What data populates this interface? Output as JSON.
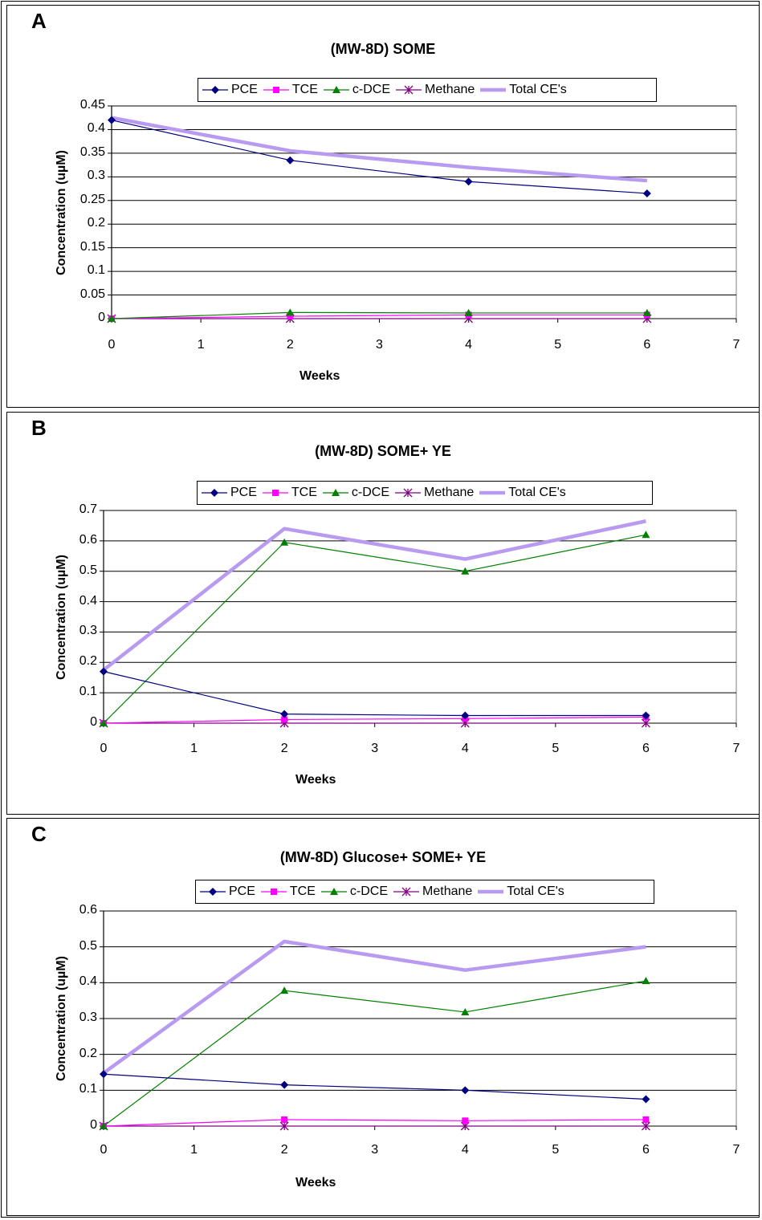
{
  "chart_data": [
    {
      "panel": "A",
      "type": "line",
      "title": "(MW-8D) SOME",
      "xlabel": "Weeks",
      "ylabel": "Concentration (uµM)",
      "xlim": [
        0,
        7
      ],
      "ylim": [
        0,
        0.45
      ],
      "x_ticks": [
        "0",
        "1",
        "2",
        "3",
        "4",
        "5",
        "6",
        "7"
      ],
      "y_ticks": [
        "0",
        "0.05",
        "0.1",
        "0.15",
        "0.2",
        "0.25",
        "0.3",
        "0.35",
        "0.4",
        "0.45"
      ],
      "grid": "horizontal",
      "legend_position": "top",
      "x": [
        0,
        2,
        4,
        6
      ],
      "series": [
        {
          "name": "PCE",
          "values": [
            0.42,
            0.335,
            0.29,
            0.265
          ],
          "color": "#000080",
          "marker": "diamond"
        },
        {
          "name": "TCE",
          "values": [
            0.0,
            0.005,
            0.008,
            0.008
          ],
          "color": "#FF00FF",
          "marker": "square"
        },
        {
          "name": "c-DCE",
          "values": [
            0.0,
            0.013,
            0.012,
            0.012
          ],
          "color": "#008000",
          "marker": "triangle"
        },
        {
          "name": "Methane",
          "values": [
            0.0,
            0.0,
            0.0,
            0.0
          ],
          "color": "#800080",
          "marker": "asterisk"
        },
        {
          "name": "Total CE's",
          "values": [
            0.425,
            0.355,
            0.32,
            0.292
          ],
          "color": "#B89AF0",
          "marker": "none"
        }
      ]
    },
    {
      "panel": "B",
      "type": "line",
      "title": "(MW-8D) SOME+ YE",
      "xlabel": "Weeks",
      "ylabel": "Concentration (uµM)",
      "xlim": [
        0,
        7
      ],
      "ylim": [
        0,
        0.7
      ],
      "x_ticks": [
        "0",
        "1",
        "2",
        "3",
        "4",
        "5",
        "6",
        "7"
      ],
      "y_ticks": [
        "0",
        "0.1",
        "0.2",
        "0.3",
        "0.4",
        "0.5",
        "0.6",
        "0.7"
      ],
      "grid": "horizontal",
      "legend_position": "top",
      "x": [
        0,
        2,
        4,
        6
      ],
      "series": [
        {
          "name": "PCE",
          "values": [
            0.17,
            0.03,
            0.025,
            0.025
          ],
          "color": "#000080",
          "marker": "diamond"
        },
        {
          "name": "TCE",
          "values": [
            0.0,
            0.012,
            0.015,
            0.02
          ],
          "color": "#FF00FF",
          "marker": "square"
        },
        {
          "name": "c-DCE",
          "values": [
            0.0,
            0.595,
            0.5,
            0.62
          ],
          "color": "#008000",
          "marker": "triangle"
        },
        {
          "name": "Methane",
          "values": [
            0.0,
            0.0,
            0.0,
            0.0
          ],
          "color": "#800080",
          "marker": "asterisk"
        },
        {
          "name": "Total CE's",
          "values": [
            0.175,
            0.64,
            0.54,
            0.665
          ],
          "color": "#B89AF0",
          "marker": "none"
        }
      ]
    },
    {
      "panel": "C",
      "type": "line",
      "title": "(MW-8D) Glucose+ SOME+ YE",
      "xlabel": "Weeks",
      "ylabel": "Concentration (uµM)",
      "xlim": [
        0,
        7
      ],
      "ylim": [
        0,
        0.6
      ],
      "x_ticks": [
        "0",
        "1",
        "2",
        "3",
        "4",
        "5",
        "6",
        "7"
      ],
      "y_ticks": [
        "0",
        "0.1",
        "0.2",
        "0.3",
        "0.4",
        "0.5",
        "0.6"
      ],
      "grid": "horizontal",
      "legend_position": "top",
      "x": [
        0,
        2,
        4,
        6
      ],
      "series": [
        {
          "name": "PCE",
          "values": [
            0.145,
            0.115,
            0.1,
            0.075
          ],
          "color": "#000080",
          "marker": "diamond"
        },
        {
          "name": "TCE",
          "values": [
            0.0,
            0.018,
            0.015,
            0.018
          ],
          "color": "#FF00FF",
          "marker": "square"
        },
        {
          "name": "c-DCE",
          "values": [
            0.0,
            0.378,
            0.318,
            0.405
          ],
          "color": "#008000",
          "marker": "triangle"
        },
        {
          "name": "Methane",
          "values": [
            0.0,
            0.0,
            0.0,
            0.0
          ],
          "color": "#800080",
          "marker": "asterisk"
        },
        {
          "name": "Total CE's",
          "values": [
            0.148,
            0.515,
            0.435,
            0.5
          ],
          "color": "#B89AF0",
          "marker": "none"
        }
      ]
    }
  ]
}
